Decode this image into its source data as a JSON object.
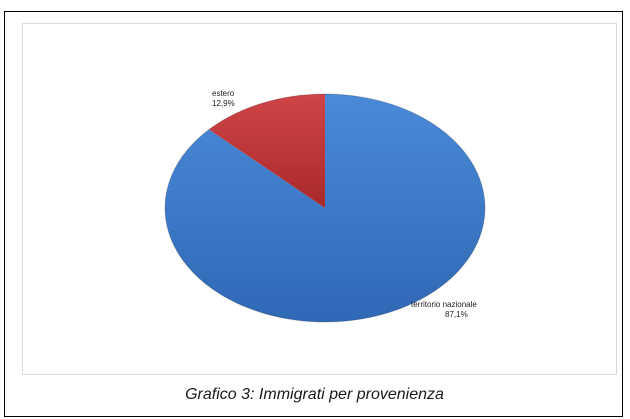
{
  "caption": "Grafico 3: Immigrati per provenienza",
  "chart_data": {
    "type": "pie",
    "slices": [
      {
        "label": "territorio nazionale",
        "value": 87.1,
        "value_label": "87,1%",
        "color": "#3f7fd0"
      },
      {
        "label": "estero",
        "value": 12.9,
        "value_label": "12,9%",
        "color": "#c0393b"
      }
    ],
    "legend": "none",
    "style": "3d-tilted"
  }
}
